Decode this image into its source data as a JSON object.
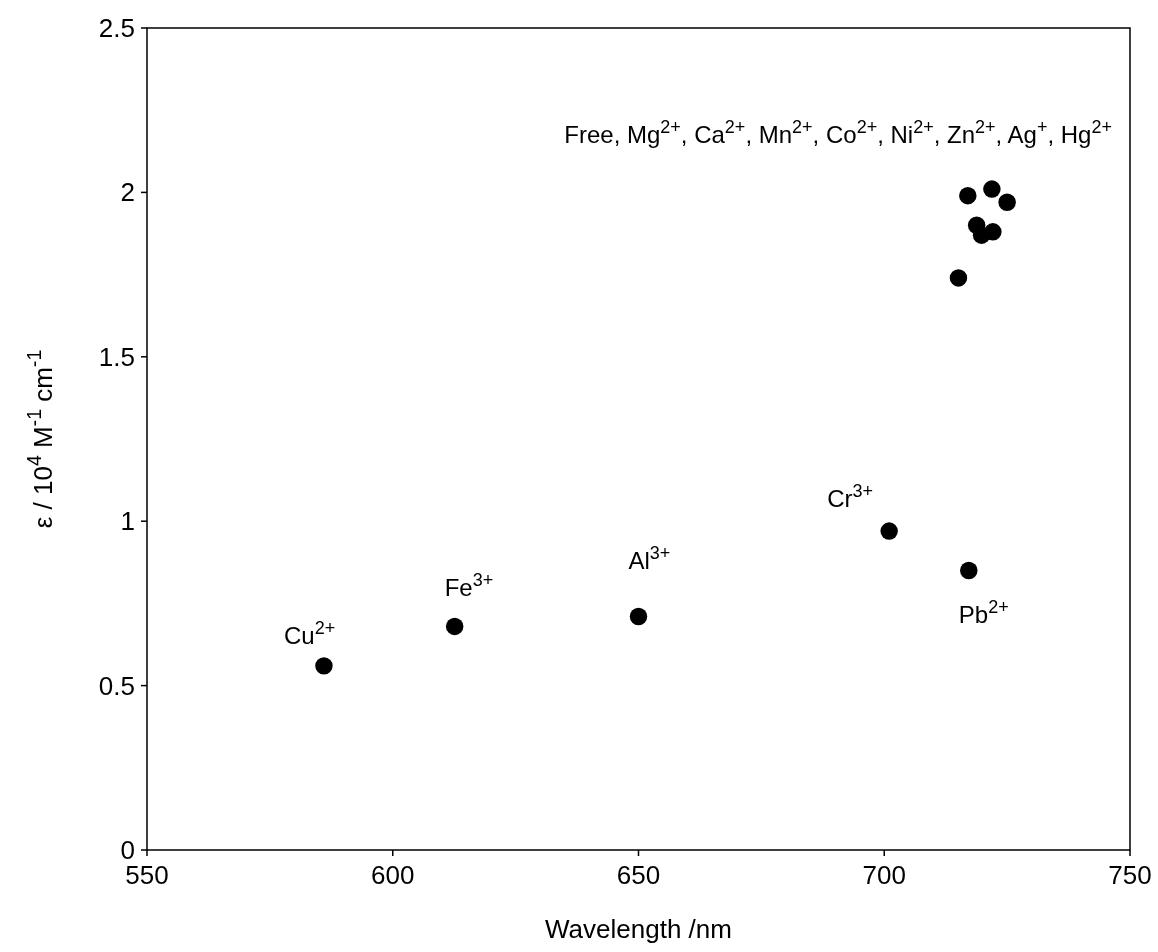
{
  "chart_data": {
    "type": "scatter",
    "xlabel": "Wavelength /nm",
    "ylabel": "ε / 10$^{4}$ M$^{-1}$ cm$^{-1}$",
    "xlim": [
      550,
      750
    ],
    "xticks": [
      550,
      600,
      650,
      700,
      750
    ],
    "ylim": [
      0,
      2.5
    ],
    "yticks": [
      0,
      0.5,
      1,
      1.5,
      2,
      2.5
    ],
    "marker": "circle",
    "series": [
      {
        "color": "#000000",
        "x": [
          586,
          612.6,
          650,
          701,
          717.2,
          715.1,
          717,
          718.8,
          719.8,
          721.9,
          722.1,
          725
        ],
        "values": [
          0.56,
          0.68,
          0.71,
          0.97,
          0.85,
          1.74,
          1.99,
          1.9,
          1.87,
          2.01,
          1.88,
          1.97
        ]
      }
    ],
    "annotations": [
      {
        "text": "Cu$^{2+}$",
        "x": 586,
        "y": 0.56
      },
      {
        "text": "Fe$^{3+}$",
        "x": 612.6,
        "y": 0.68
      },
      {
        "text": "Al$^{3+}$",
        "x": 650,
        "y": 0.71
      },
      {
        "text": "Cr$^{3+}$",
        "x": 701,
        "y": 0.97
      },
      {
        "text": "Pb$^{2+}$",
        "x": 717.2,
        "y": 0.85
      },
      "Free, Mg$^{2+}$, Ca$^{2+}$, Mn$^{2+}$, Co$^{2+}$, Ni$^{2+}$, Zn$^{2+}$, Ag$^{+}$, Hg$^{2+}$"
    ]
  }
}
